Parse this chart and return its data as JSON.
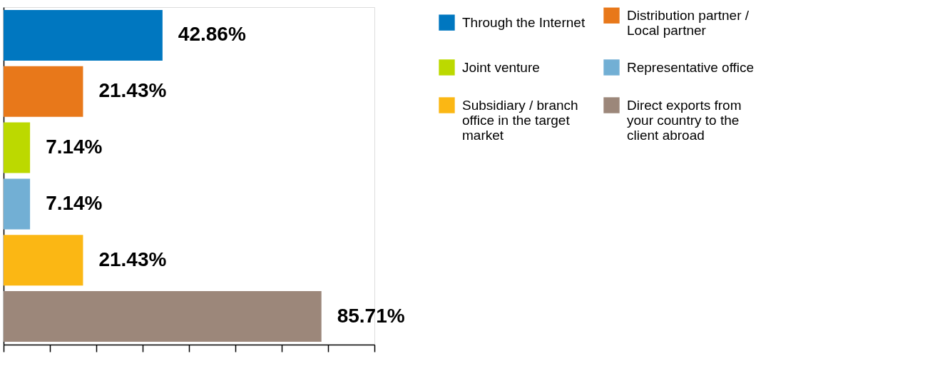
{
  "chart_data": {
    "type": "bar",
    "orientation": "horizontal",
    "categories": [
      null
    ],
    "series": [
      {
        "name": "Through the Internet",
        "color": "#0077c0",
        "values": [
          42.86
        ],
        "value_labels": [
          "42.86%"
        ]
      },
      {
        "name": "Distribution partner / Local partner",
        "color": "#e8781a",
        "values": [
          21.43
        ],
        "value_labels": [
          "21.43%"
        ]
      },
      {
        "name": "Joint venture",
        "color": "#bcd900",
        "values": [
          7.14
        ],
        "value_labels": [
          "7.14%"
        ]
      },
      {
        "name": "Representative office",
        "color": "#72afd4",
        "values": [
          7.14
        ],
        "value_labels": [
          "7.14%"
        ]
      },
      {
        "name": "Subsidiary / branch office in the target market",
        "color": "#fbb714",
        "values": [
          21.43
        ],
        "value_labels": [
          "21.43%"
        ]
      },
      {
        "name": "Direct exports from your country to the client abroad",
        "color": "#9c877a",
        "values": [
          85.71
        ],
        "value_labels": [
          "85.71%"
        ]
      }
    ],
    "xlim": [
      0,
      100
    ],
    "xticks": [
      {
        "value": 0,
        "label": null
      },
      {
        "value": 12.5,
        "label": null
      },
      {
        "value": 25,
        "label": null
      },
      {
        "value": 37.5,
        "label": null
      },
      {
        "value": 50,
        "label": null
      },
      {
        "value": 62.5,
        "label": null
      },
      {
        "value": 75,
        "label": null
      },
      {
        "value": 87.5,
        "label": null
      },
      {
        "value": 100,
        "label": null
      }
    ],
    "tick_labels": false,
    "grid": false,
    "legend": "right"
  }
}
